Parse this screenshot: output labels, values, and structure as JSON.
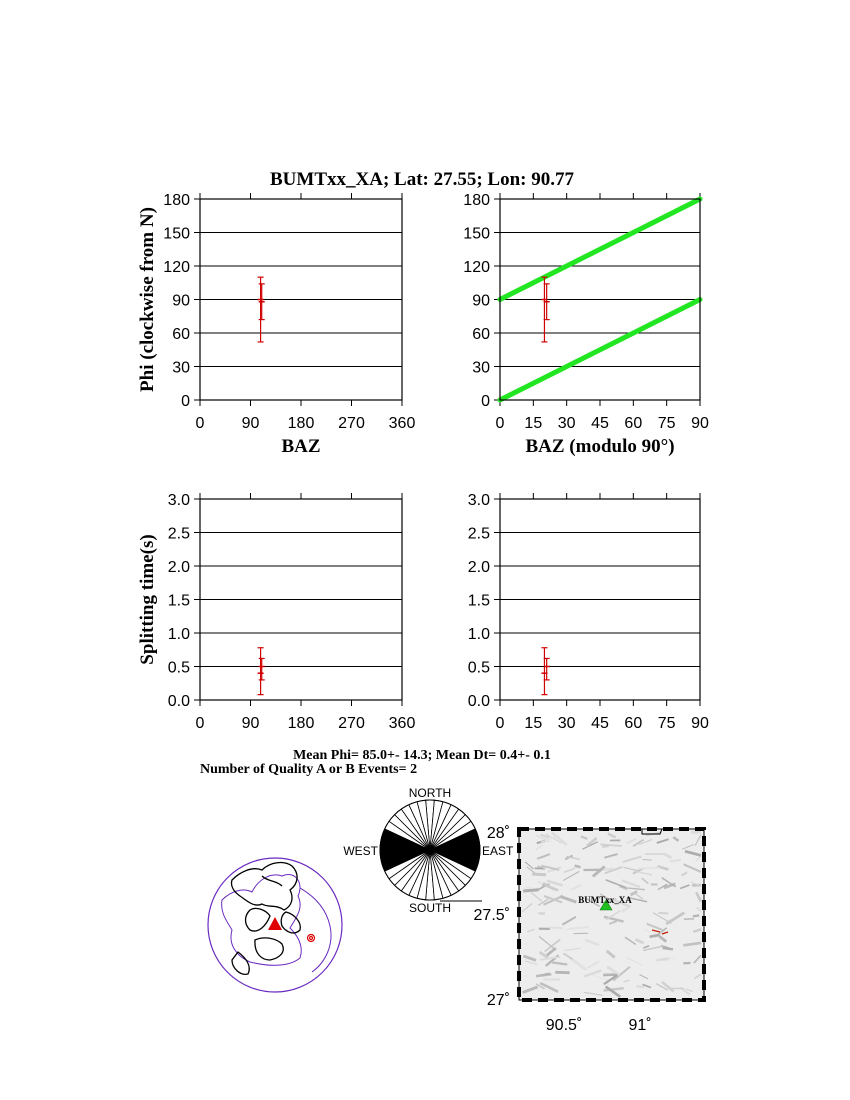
{
  "title": "BUMTxx_XA; Lat:  27.55;  Lon:   90.77",
  "summary": {
    "mean_line": "Mean Phi= 85.0+- 14.3; Mean Dt=  0.4+-  0.1",
    "count_line": "Number of Quality A or B Events=  2"
  },
  "colors": {
    "data": "#d00000",
    "model": "#22e622",
    "grid": "#000000",
    "event": "#e00000",
    "station": "#20c020",
    "coast": "#6a2ac0"
  },
  "chart_data": [
    {
      "type": "scatter",
      "panel": "phi-vs-baz",
      "ylabel": "Phi (clockwise from N)",
      "xlabel": "BAZ",
      "xlim": [
        0,
        360
      ],
      "ylim": [
        0,
        180
      ],
      "xticks": [
        0,
        90,
        180,
        270,
        360
      ],
      "yticks": [
        0,
        30,
        60,
        90,
        120,
        150,
        180
      ],
      "points": [
        {
          "x": 108,
          "y": 90,
          "ylo": 52,
          "yhi": 110
        },
        {
          "x": 110,
          "y": 88,
          "ylo": 72,
          "yhi": 104
        }
      ],
      "grid": "horizontal"
    },
    {
      "type": "scatter",
      "panel": "phi-vs-baz-mod90",
      "xlabel": "BAZ (modulo 90°)",
      "xlim": [
        0,
        90
      ],
      "ylim": [
        0,
        180
      ],
      "xticks": [
        0,
        15,
        30,
        45,
        60,
        75,
        90
      ],
      "yticks": [
        0,
        30,
        60,
        90,
        120,
        150,
        180
      ],
      "points": [
        {
          "x": 20,
          "y": 90,
          "ylo": 52,
          "yhi": 110
        },
        {
          "x": 21,
          "y": 88,
          "ylo": 72,
          "yhi": 104
        }
      ],
      "lines": [
        {
          "x": [
            0,
            90
          ],
          "y": [
            0,
            90
          ]
        },
        {
          "x": [
            0,
            90
          ],
          "y": [
            90,
            180
          ]
        }
      ],
      "grid": "horizontal"
    },
    {
      "type": "scatter",
      "panel": "dt-vs-baz",
      "ylabel": "Splitting time(s)",
      "xlim": [
        0,
        360
      ],
      "ylim": [
        0,
        3
      ],
      "xticks": [
        0,
        90,
        180,
        270,
        360
      ],
      "yticks": [
        "0.0",
        "0.5",
        "1.0",
        "1.5",
        "2.0",
        "2.5",
        "3.0"
      ],
      "points": [
        {
          "x": 108,
          "y": 0.4,
          "ylo": 0.08,
          "yhi": 0.78
        },
        {
          "x": 110,
          "y": 0.5,
          "ylo": 0.3,
          "yhi": 0.62
        }
      ],
      "grid": "horizontal"
    },
    {
      "type": "scatter",
      "panel": "dt-vs-baz-mod90",
      "xlim": [
        0,
        90
      ],
      "ylim": [
        0,
        3
      ],
      "xticks": [
        0,
        15,
        30,
        45,
        60,
        75,
        90
      ],
      "yticks": [
        "0.0",
        "0.5",
        "1.0",
        "1.5",
        "2.0",
        "2.5",
        "3.0"
      ],
      "points": [
        {
          "x": 20,
          "y": 0.4,
          "ylo": 0.08,
          "yhi": 0.78
        },
        {
          "x": 21,
          "y": 0.5,
          "ylo": 0.3,
          "yhi": 0.62
        }
      ],
      "grid": "horizontal"
    }
  ],
  "rose": {
    "labels": {
      "north": "NORTH",
      "south": "SOUTH",
      "west": "WEST",
      "east": "EAST"
    },
    "sectors": 18,
    "filled_azimuths": [
      70,
      80,
      90,
      100,
      110
    ]
  },
  "map": {
    "station_label": "BUMTxx_XA",
    "lat_ticks": [
      "28˚",
      "27.5˚",
      "27˚"
    ],
    "lon_ticks": [
      "90.5˚",
      "91˚"
    ]
  }
}
